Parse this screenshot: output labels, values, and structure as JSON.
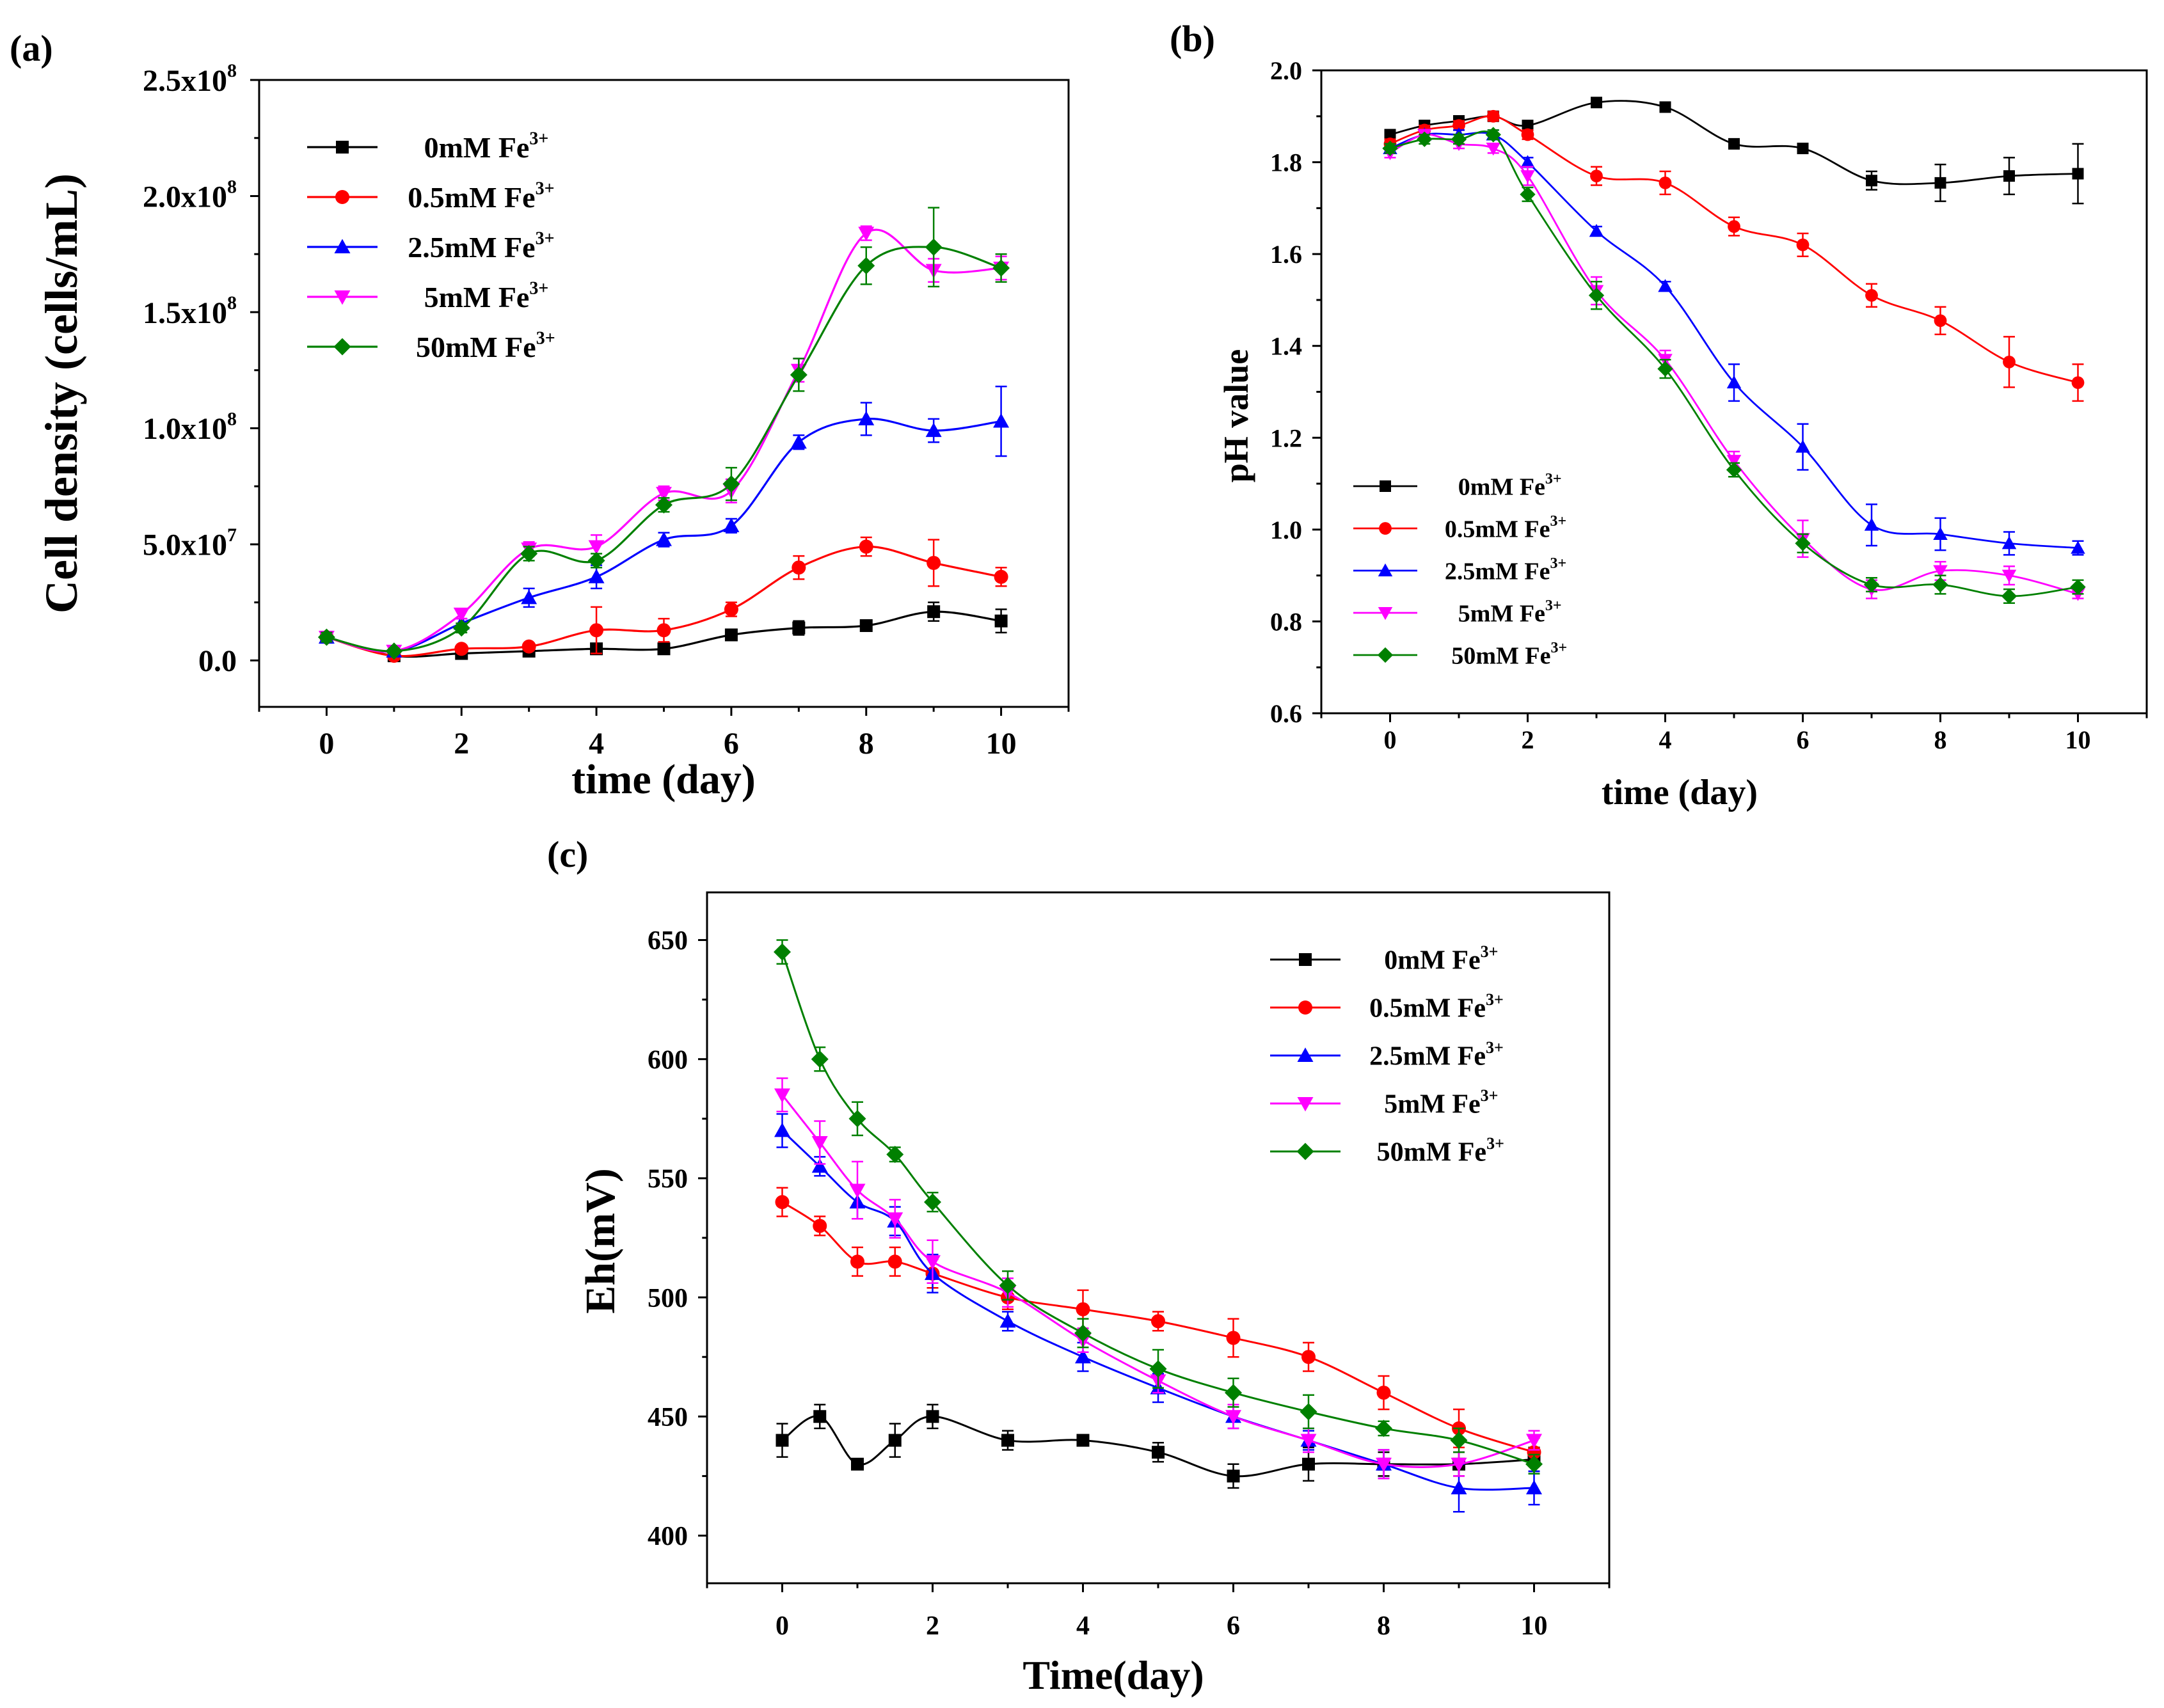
{
  "chart_data": [
    {
      "panel_label": "(a)",
      "type": "line",
      "xlabel": "time (day)",
      "ylabel": "Cell density (cells/mL)",
      "xlim": [
        -1,
        11
      ],
      "ylim": [
        -20000000.0,
        250000000.0
      ],
      "x_ticks": [
        0,
        2,
        4,
        6,
        8,
        10
      ],
      "y_ticks": [
        0,
        50000000.0,
        100000000.0,
        150000000.0,
        200000000.0,
        250000000.0
      ],
      "y_tick_labels": [
        {
          "base": "0.0",
          "exp": ""
        },
        {
          "base": "5.0x10",
          "exp": "7"
        },
        {
          "base": "1.0x10",
          "exp": "8"
        },
        {
          "base": "1.5x10",
          "exp": "8"
        },
        {
          "base": "2.0x10",
          "exp": "8"
        },
        {
          "base": "2.5x10",
          "exp": "8"
        }
      ],
      "legend_position": "top-left",
      "series": [
        {
          "name": "0mM Fe",
          "sup": "3+",
          "color": "#000000",
          "marker": "square",
          "x": [
            0,
            1,
            2,
            3,
            4,
            5,
            6,
            7,
            8,
            9,
            10
          ],
          "y": [
            10000000.0,
            2000000.0,
            3000000.0,
            4000000.0,
            5000000.0,
            5000000.0,
            11000000.0,
            14000000.0,
            15000000.0,
            21000000.0,
            17000000.0
          ],
          "err": [
            2000000.0,
            1000000.0,
            1000000.0,
            1000000.0,
            2000000.0,
            2000000.0,
            2000000.0,
            3000000.0,
            2000000.0,
            4000000.0,
            5000000.0
          ]
        },
        {
          "name": "0.5mM Fe",
          "sup": "3+",
          "color": "#ff0000",
          "marker": "circle",
          "x": [
            0,
            1,
            2,
            3,
            4,
            5,
            6,
            7,
            8,
            9,
            10
          ],
          "y": [
            10000000.0,
            2000000.0,
            5000000.0,
            6000000.0,
            13000000.0,
            13000000.0,
            22000000.0,
            40000000.0,
            49000000.0,
            42000000.0,
            36000000.0
          ],
          "err": [
            2000000.0,
            1000000.0,
            1000000.0,
            1000000.0,
            10000000.0,
            5000000.0,
            3000000.0,
            5000000.0,
            4000000.0,
            10000000.0,
            4000000.0
          ]
        },
        {
          "name": "2.5mM Fe",
          "sup": "3+",
          "color": "#0000ff",
          "marker": "triangle-up",
          "x": [
            0,
            1,
            2,
            3,
            4,
            5,
            6,
            7,
            8,
            9,
            10
          ],
          "y": [
            10000000.0,
            4000000.0,
            16000000.0,
            27000000.0,
            36000000.0,
            52000000.0,
            58000000.0,
            94000000.0,
            104000000.0,
            99000000.0,
            103000000.0
          ],
          "err": [
            2000000.0,
            1000000.0,
            2000000.0,
            4000000.0,
            5000000.0,
            3000000.0,
            3000000.0,
            3000000.0,
            7000000.0,
            5000000.0,
            15000000.0
          ]
        },
        {
          "name": "5mM Fe",
          "sup": "3+",
          "color": "#ff00ff",
          "marker": "triangle-down",
          "x": [
            0,
            1,
            2,
            3,
            4,
            5,
            6,
            7,
            8,
            9,
            10
          ],
          "y": [
            10000000.0,
            4000000.0,
            20000000.0,
            48000000.0,
            49000000.0,
            72000000.0,
            73000000.0,
            125000000.0,
            184000000.0,
            168000000.0,
            169000000.0
          ],
          "err": [
            2000000.0,
            1000000.0,
            2000000.0,
            3000000.0,
            5000000.0,
            3000000.0,
            5000000.0,
            5000000.0,
            3000000.0,
            5000000.0,
            5000000.0
          ]
        },
        {
          "name": "50mM Fe",
          "sup": "3+",
          "color": "#008000",
          "marker": "diamond",
          "x": [
            0,
            1,
            2,
            3,
            4,
            5,
            6,
            7,
            8,
            9,
            10
          ],
          "y": [
            10000000.0,
            4000000.0,
            14000000.0,
            46000000.0,
            43000000.0,
            67000000.0,
            76000000.0,
            123000000.0,
            170000000.0,
            178000000.0,
            169000000.0
          ],
          "err": [
            2000000.0,
            1000000.0,
            2000000.0,
            3000000.0,
            3000000.0,
            3000000.0,
            7000000.0,
            7000000.0,
            8000000.0,
            17000000.0,
            6000000.0
          ]
        }
      ]
    },
    {
      "panel_label": "(b)",
      "type": "line",
      "xlabel": "time (day)",
      "ylabel": "pH value",
      "xlim": [
        -1,
        11
      ],
      "ylim": [
        0.6,
        2.0
      ],
      "x_ticks": [
        0,
        2,
        4,
        6,
        8,
        10
      ],
      "y_ticks": [
        0.6,
        0.8,
        1.0,
        1.2,
        1.4,
        1.6,
        1.8,
        2.0
      ],
      "y_tick_labels": [
        {
          "base": "0.6",
          "exp": ""
        },
        {
          "base": "0.8",
          "exp": ""
        },
        {
          "base": "1.0",
          "exp": ""
        },
        {
          "base": "1.2",
          "exp": ""
        },
        {
          "base": "1.4",
          "exp": ""
        },
        {
          "base": "1.6",
          "exp": ""
        },
        {
          "base": "1.8",
          "exp": ""
        },
        {
          "base": "2.0",
          "exp": ""
        }
      ],
      "legend_position": "bottom-left",
      "series": [
        {
          "name": "0mM Fe",
          "sup": "3+",
          "color": "#000000",
          "marker": "square",
          "x": [
            0,
            0.5,
            1,
            1.5,
            2,
            3,
            4,
            5,
            6,
            7,
            8,
            9,
            10
          ],
          "y": [
            1.86,
            1.88,
            1.89,
            1.9,
            1.88,
            1.93,
            1.92,
            1.84,
            1.83,
            1.76,
            1.755,
            1.77,
            1.775
          ],
          "err": [
            0.01,
            0.01,
            0.01,
            0.01,
            0.01,
            0.005,
            0.005,
            0.005,
            0.005,
            0.02,
            0.04,
            0.04,
            0.065
          ]
        },
        {
          "name": "0.5mM Fe",
          "sup": "3+",
          "color": "#ff0000",
          "marker": "circle",
          "x": [
            0,
            0.5,
            1,
            1.5,
            2,
            3,
            4,
            5,
            6,
            7,
            8,
            9,
            10
          ],
          "y": [
            1.84,
            1.87,
            1.88,
            1.9,
            1.86,
            1.77,
            1.755,
            1.66,
            1.62,
            1.51,
            1.455,
            1.365,
            1.32
          ],
          "err": [
            0.01,
            0.01,
            0.01,
            0.01,
            0.01,
            0.02,
            0.025,
            0.02,
            0.025,
            0.025,
            0.03,
            0.055,
            0.04
          ]
        },
        {
          "name": "2.5mM Fe",
          "sup": "3+",
          "color": "#0000ff",
          "marker": "triangle-up",
          "x": [
            0,
            0.5,
            1,
            1.5,
            2,
            3,
            4,
            5,
            6,
            7,
            8,
            9,
            10
          ],
          "y": [
            1.83,
            1.86,
            1.86,
            1.86,
            1.8,
            1.65,
            1.53,
            1.32,
            1.18,
            1.01,
            0.99,
            0.97,
            0.96
          ],
          "err": [
            0.01,
            0.01,
            0.01,
            0.01,
            0.01,
            0.01,
            0.01,
            0.04,
            0.05,
            0.045,
            0.035,
            0.025,
            0.015
          ]
        },
        {
          "name": "5mM Fe",
          "sup": "3+",
          "color": "#ff00ff",
          "marker": "triangle-down",
          "x": [
            0,
            0.5,
            1,
            1.5,
            2,
            3,
            4,
            5,
            6,
            7,
            8,
            9,
            10
          ],
          "y": [
            1.82,
            1.86,
            1.84,
            1.83,
            1.77,
            1.52,
            1.37,
            1.15,
            0.98,
            0.87,
            0.91,
            0.9,
            0.86
          ],
          "err": [
            0.01,
            0.01,
            0.01,
            0.01,
            0.02,
            0.03,
            0.02,
            0.02,
            0.04,
            0.02,
            0.02,
            0.02,
            0.01
          ]
        },
        {
          "name": "50mM Fe",
          "sup": "3+",
          "color": "#008000",
          "marker": "diamond",
          "x": [
            0,
            0.5,
            1,
            1.5,
            2,
            3,
            4,
            5,
            6,
            7,
            8,
            9,
            10
          ],
          "y": [
            1.83,
            1.85,
            1.85,
            1.86,
            1.73,
            1.51,
            1.35,
            1.13,
            0.97,
            0.88,
            0.88,
            0.855,
            0.875
          ],
          "err": [
            0.01,
            0.01,
            0.01,
            0.01,
            0.015,
            0.03,
            0.02,
            0.015,
            0.02,
            0.015,
            0.02,
            0.015,
            0.015
          ]
        }
      ]
    },
    {
      "panel_label": "(c)",
      "type": "line",
      "xlabel": "Time(day)",
      "ylabel": "Eh(mV)",
      "xlim": [
        -1,
        11
      ],
      "ylim": [
        380,
        670
      ],
      "x_ticks": [
        0,
        2,
        4,
        6,
        8,
        10
      ],
      "y_ticks": [
        400,
        450,
        500,
        550,
        600,
        650
      ],
      "y_tick_labels": [
        {
          "base": "400",
          "exp": ""
        },
        {
          "base": "450",
          "exp": ""
        },
        {
          "base": "500",
          "exp": ""
        },
        {
          "base": "550",
          "exp": ""
        },
        {
          "base": "600",
          "exp": ""
        },
        {
          "base": "650",
          "exp": ""
        }
      ],
      "legend_position": "top-right",
      "series": [
        {
          "name": "0mM Fe",
          "sup": "3+",
          "color": "#000000",
          "marker": "square",
          "x": [
            0,
            0.5,
            1,
            1.5,
            2,
            3,
            4,
            5,
            6,
            7,
            8,
            9,
            10
          ],
          "y": [
            440,
            450,
            430,
            440,
            450,
            440,
            440,
            435,
            425,
            430,
            430,
            430,
            432
          ],
          "err": [
            7,
            5,
            2,
            7,
            5,
            4,
            2,
            4,
            5,
            7,
            5,
            5,
            5
          ]
        },
        {
          "name": "0.5mM Fe",
          "sup": "3+",
          "color": "#ff0000",
          "marker": "circle",
          "x": [
            0,
            0.5,
            1,
            1.5,
            2,
            3,
            4,
            5,
            6,
            7,
            8,
            9,
            10
          ],
          "y": [
            540,
            530,
            515,
            515,
            510,
            500,
            495,
            490,
            483,
            475,
            460,
            445,
            435
          ],
          "err": [
            6,
            4,
            6,
            6,
            6,
            5,
            8,
            4,
            8,
            6,
            7,
            8,
            6
          ]
        },
        {
          "name": "2.5mM Fe",
          "sup": "3+",
          "color": "#0000ff",
          "marker": "triangle-up",
          "x": [
            0,
            0.5,
            1,
            1.5,
            2,
            3,
            4,
            5,
            6,
            7,
            8,
            9,
            10
          ],
          "y": [
            570,
            555,
            540,
            532,
            510,
            490,
            475,
            462,
            450,
            440,
            430,
            420,
            420
          ],
          "err": [
            7,
            4,
            7,
            6,
            8,
            4,
            6,
            6,
            5,
            4,
            6,
            10,
            7
          ]
        },
        {
          "name": "5mM Fe",
          "sup": "3+",
          "color": "#ff00ff",
          "marker": "triangle-down",
          "x": [
            0,
            0.5,
            1,
            1.5,
            2,
            3,
            4,
            5,
            6,
            7,
            8,
            9,
            10
          ],
          "y": [
            585,
            565,
            545,
            533,
            515,
            502,
            482,
            465,
            450,
            440,
            430,
            430,
            440
          ],
          "err": [
            7,
            9,
            12,
            8,
            9,
            6,
            5,
            5,
            5,
            5,
            6,
            5,
            4
          ]
        },
        {
          "name": "50mM Fe",
          "sup": "3+",
          "color": "#008000",
          "marker": "diamond",
          "x": [
            0,
            0.5,
            1,
            1.5,
            2,
            3,
            4,
            5,
            6,
            7,
            8,
            9,
            10
          ],
          "y": [
            645,
            600,
            575,
            560,
            540,
            505,
            485,
            470,
            460,
            452,
            445,
            440,
            430
          ],
          "err": [
            5,
            5,
            7,
            3,
            4,
            6,
            6,
            8,
            6,
            7,
            3,
            5,
            4
          ]
        }
      ]
    }
  ]
}
